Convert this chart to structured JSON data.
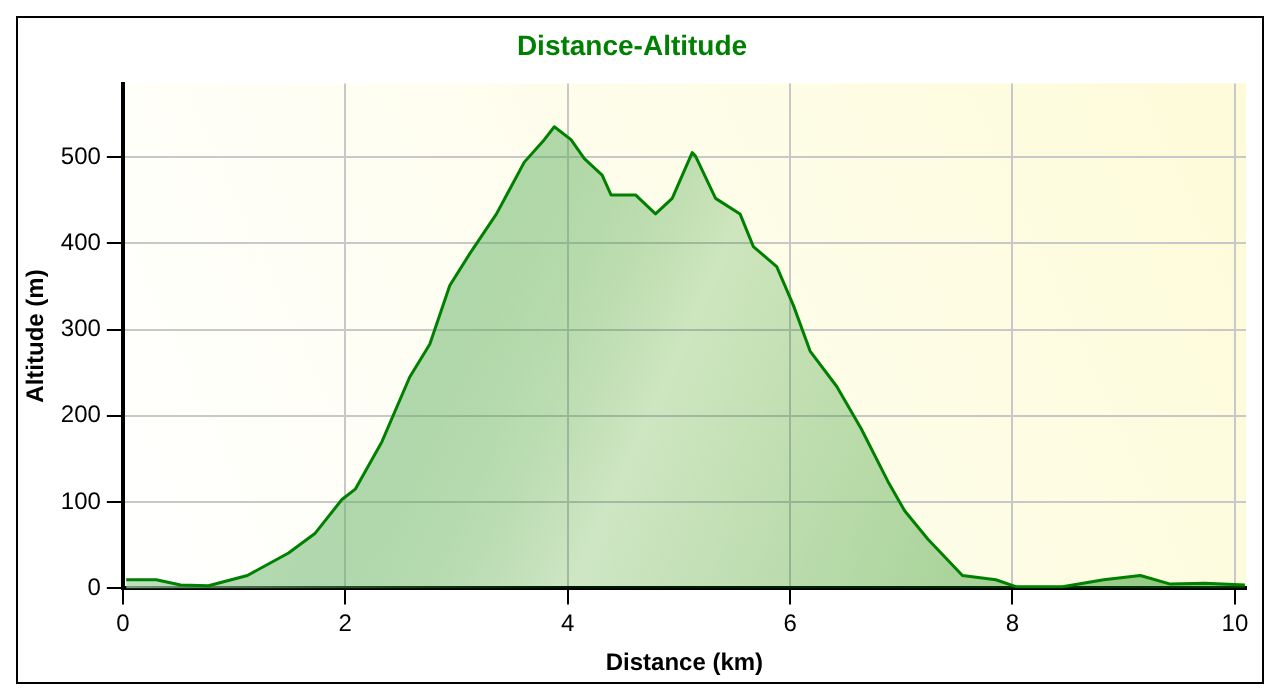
{
  "chart_data": {
    "type": "area",
    "title": "Distance-Altitude",
    "xlabel": "Distance (km)",
    "ylabel": "Altitude (m)",
    "x": [
      0.03,
      0.3,
      0.52,
      0.77,
      1.12,
      1.49,
      1.73,
      1.97,
      2.09,
      2.33,
      2.58,
      2.76,
      2.94,
      3.12,
      3.36,
      3.61,
      3.79,
      3.88,
      4.03,
      4.15,
      4.31,
      4.39,
      4.61,
      4.79,
      4.94,
      5.12,
      5.15,
      5.33,
      5.55,
      5.67,
      5.88,
      6.03,
      6.18,
      6.42,
      6.64,
      6.88,
      7.03,
      7.24,
      7.55,
      7.85,
      8.03,
      8.45,
      8.82,
      9.15,
      9.42,
      9.73,
      10.09
    ],
    "series": [
      {
        "color": "#008000",
        "values": [
          10,
          10,
          4,
          3,
          15,
          41,
          64,
          103,
          115,
          170,
          245,
          283,
          351,
          388,
          434,
          494,
          520,
          535,
          520,
          498,
          479,
          456,
          456,
          434,
          452,
          505,
          501,
          452,
          434,
          396,
          373,
          328,
          275,
          234,
          185,
          124,
          90,
          57,
          15,
          10,
          2,
          2,
          10,
          15,
          5,
          6,
          4
        ]
      }
    ],
    "xlim": [
      0,
      10.1
    ],
    "xticks": [
      0,
      2,
      4,
      6,
      8,
      10
    ],
    "ylim": [
      0,
      585
    ],
    "yticks": [
      0,
      100,
      200,
      300,
      400,
      500
    ],
    "grid": true,
    "legend": false,
    "marker": "none",
    "line_style": "solid"
  }
}
